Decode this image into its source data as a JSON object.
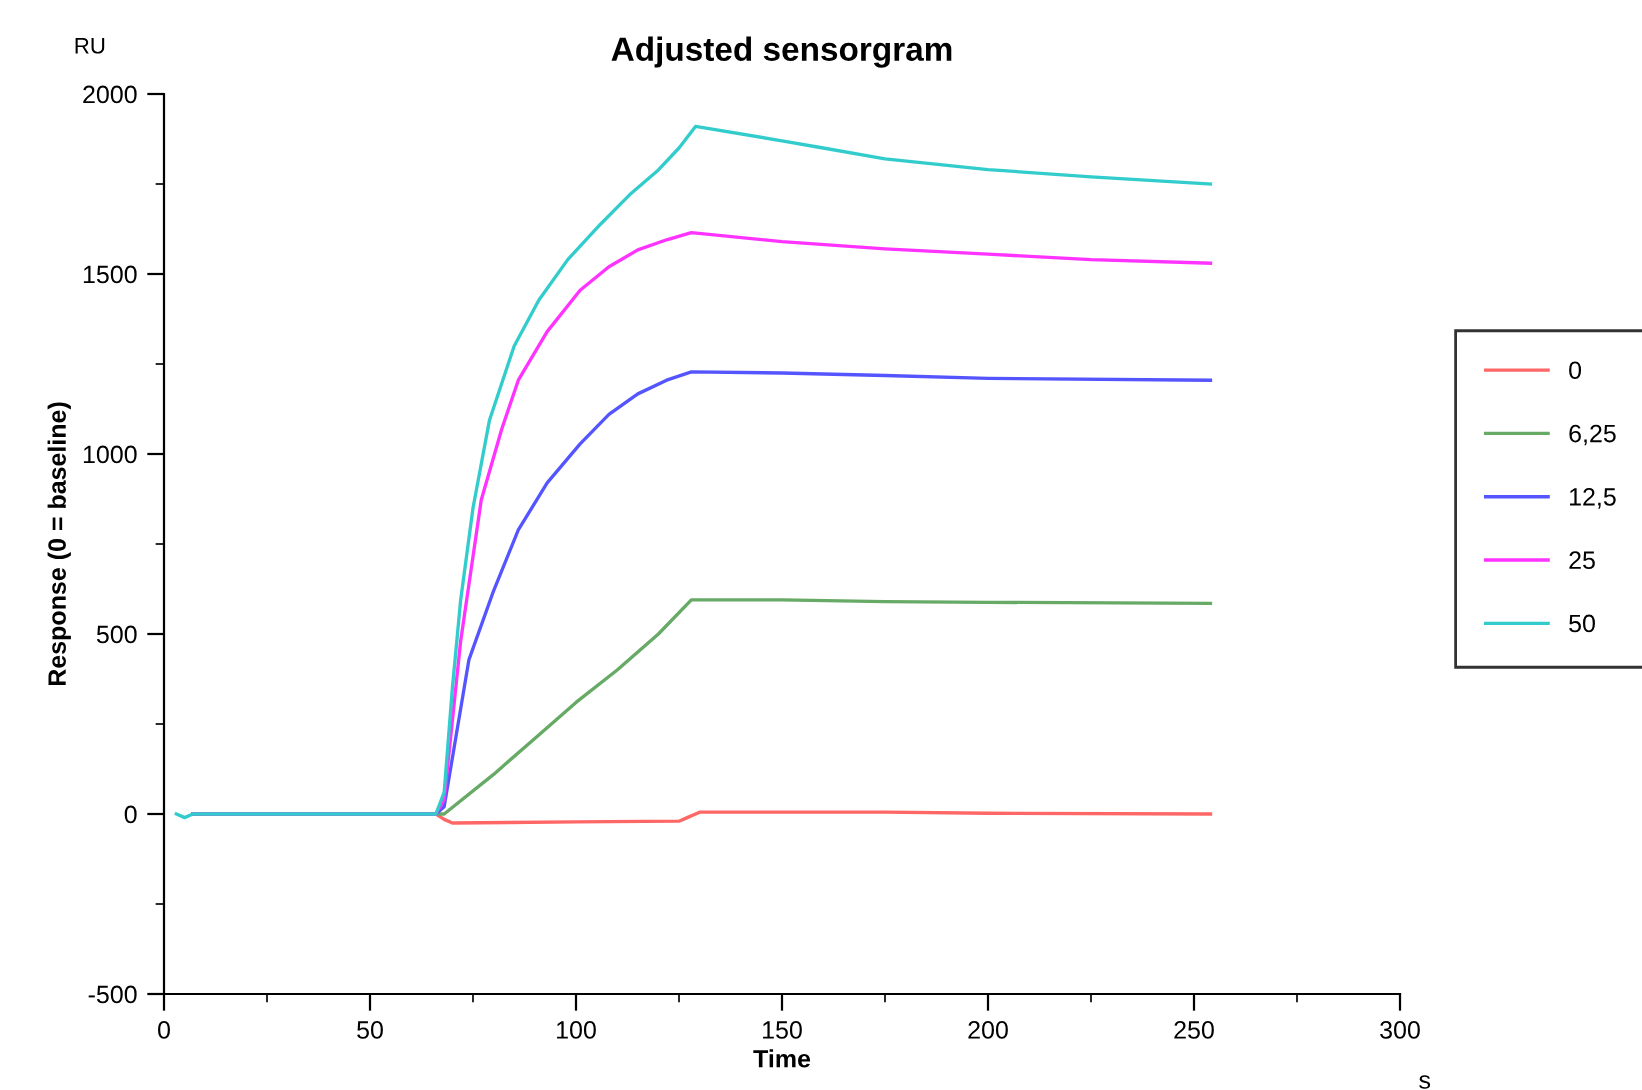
{
  "chart_data": {
    "type": "line",
    "title": "Adjusted sensorgram",
    "xlabel": "Time",
    "ylabel": "Response (0 = baseline)",
    "annotations": [
      "RU",
      "s"
    ],
    "xlim": [
      0,
      300
    ],
    "xticks": [
      0,
      50,
      100,
      150,
      200,
      250,
      300
    ],
    "ylim": [
      -500,
      2000
    ],
    "yticks": [
      -500,
      0,
      500,
      1000,
      1500,
      2000
    ],
    "grid": false,
    "legend": "right",
    "line_style": "solid",
    "series": [
      {
        "name": "0",
        "color": "#ff6666",
        "x": [
          7,
          66,
          68,
          70,
          100,
          125,
          127,
          130,
          175,
          200,
          254
        ],
        "values": [
          0,
          0,
          -15,
          -25,
          -22,
          -20,
          -10,
          5,
          5,
          2,
          0
        ]
      },
      {
        "name": "6,25",
        "color": "#66aa66",
        "x": [
          7,
          66,
          68,
          80,
          90,
          100,
          110,
          120,
          128,
          150,
          175,
          200,
          254
        ],
        "values": [
          0,
          0,
          0,
          110,
          210,
          310,
          400,
          500,
          595,
          595,
          590,
          588,
          585
        ]
      },
      {
        "name": "12,5",
        "color": "#5555ff",
        "x": [
          7,
          66,
          68,
          74,
          80,
          86,
          93,
          101,
          108,
          115,
          122,
          128,
          150,
          175,
          200,
          254
        ],
        "values": [
          0,
          0,
          20,
          428,
          620,
          789,
          920,
          1028,
          1110,
          1167,
          1205,
          1228,
          1225,
          1218,
          1210,
          1205
        ]
      },
      {
        "name": "25",
        "color": "#ff33ff",
        "x": [
          7,
          66,
          68,
          72,
          77,
          82,
          86,
          93,
          101,
          108,
          115,
          122,
          128,
          150,
          175,
          200,
          225,
          254
        ],
        "values": [
          0,
          0,
          40,
          480,
          872,
          1070,
          1205,
          1340,
          1455,
          1520,
          1567,
          1595,
          1615,
          1590,
          1570,
          1555,
          1540,
          1530
        ]
      },
      {
        "name": "50",
        "color": "#33cccc",
        "x": [
          3,
          5,
          7,
          66,
          68,
          70,
          72,
          75,
          79,
          85,
          91,
          98,
          106,
          113,
          120,
          125,
          129,
          150,
          160,
          175,
          200,
          225,
          254
        ],
        "values": [
          0,
          -10,
          0,
          0,
          60,
          350,
          594,
          850,
          1094,
          1300,
          1428,
          1540,
          1639,
          1720,
          1789,
          1850,
          1910,
          1870,
          1850,
          1820,
          1790,
          1770,
          1750
        ]
      }
    ]
  }
}
